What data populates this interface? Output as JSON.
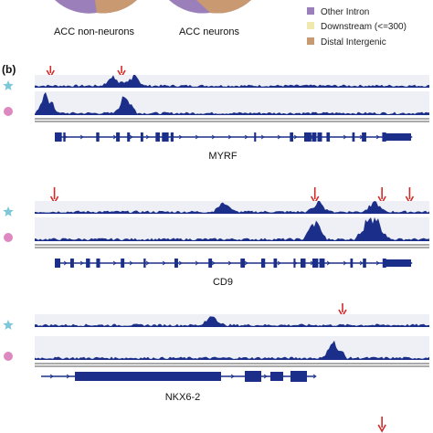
{
  "colors": {
    "track": "#1b2f8a",
    "track_bg": "#eef0f5",
    "arrow": "#d42a2a",
    "star": "#7dc8d8",
    "dot": "#dd88c0",
    "pie_a": "#9b7fba",
    "pie_b": "#c99a72"
  },
  "top": {
    "pie_labels": [
      "ACC non-neurons",
      "ACC neurons"
    ],
    "legend": [
      {
        "label": "Other Intron",
        "color": "#9b7fba"
      },
      {
        "label": "Downstream (<=300)",
        "color": "#efe9b0"
      },
      {
        "label": "Distal Intergenic",
        "color": "#c99a72"
      }
    ]
  },
  "panel_label": "(b)",
  "genes": [
    {
      "name": "MYRF",
      "arrows": [
        0.04,
        0.22
      ],
      "peaks_star": [
        0.2,
        0.25
      ],
      "peaks_dot": [
        0.03,
        0.23
      ]
    },
    {
      "name": "CD9",
      "arrows": [
        0.05,
        0.71,
        0.88,
        0.95
      ],
      "peaks_star": [
        0.48,
        0.72,
        0.86
      ],
      "peaks_dot": [
        0.71,
        0.84,
        0.87
      ]
    },
    {
      "name": "NKX6-2",
      "arrows": [
        0.78
      ],
      "peaks_star": [
        0.45
      ],
      "peaks_dot": [
        0.76
      ]
    }
  ],
  "icons": {
    "cell_type_a": "star-icon",
    "cell_type_b": "circle-icon",
    "marker": "down-arrow-icon"
  }
}
